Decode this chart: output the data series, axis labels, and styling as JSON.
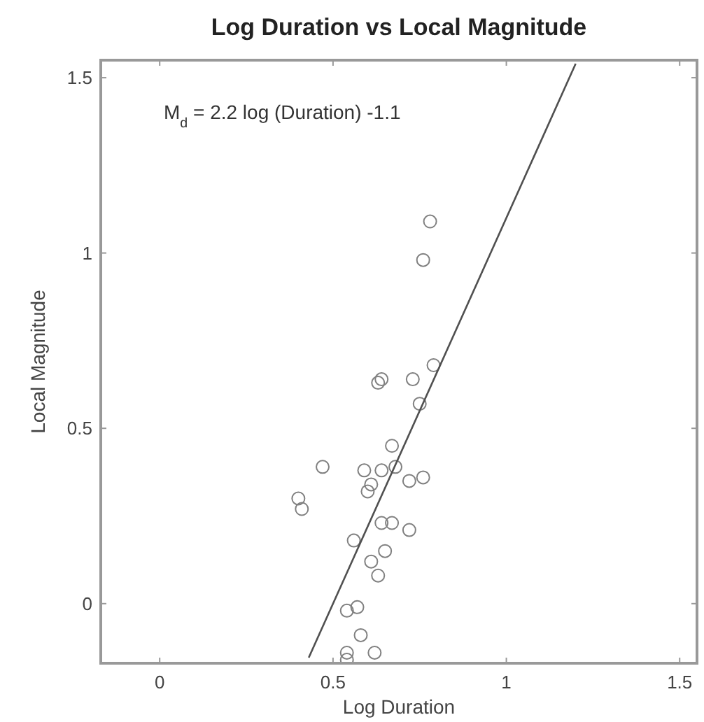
{
  "chart_data": {
    "type": "scatter",
    "title": "Log Duration vs Local Magnitude",
    "xlabel": "Log Duration",
    "ylabel": "Local Magnitude",
    "annotations": [
      "M$_{d}$ = 2.2 log (Duration) -1.1"
    ],
    "xlim": [
      -0.17,
      1.55
    ],
    "ylim": [
      -0.17,
      1.55
    ],
    "xticks": [
      0,
      0.5,
      1,
      1.5
    ],
    "yticks": [
      0,
      0.5,
      1,
      1.5
    ],
    "grid": false,
    "marker": "circle",
    "series": [
      {
        "color": "#808080",
        "x": [
          0.78,
          0.76,
          0.79,
          0.63,
          0.64,
          0.73,
          0.75,
          0.67,
          0.47,
          0.59,
          0.64,
          0.68,
          0.72,
          0.76,
          0.61,
          0.6,
          0.4,
          0.41,
          0.56,
          0.64,
          0.67,
          0.72,
          0.65,
          0.61,
          0.63,
          0.54,
          0.57,
          0.58,
          0.54,
          0.62,
          0.54
        ],
        "values": [
          1.09,
          0.98,
          0.68,
          0.63,
          0.64,
          0.64,
          0.57,
          0.45,
          0.39,
          0.38,
          0.38,
          0.39,
          0.35,
          0.36,
          0.34,
          0.32,
          0.3,
          0.27,
          0.18,
          0.23,
          0.23,
          0.21,
          0.15,
          0.12,
          0.08,
          -0.02,
          -0.01,
          -0.09,
          -0.14,
          -0.14,
          -0.16
        ]
      },
      {
        "type": "line",
        "color": "#505050",
        "line_style": "solid",
        "marker": "none",
        "x": [
          0.43,
          1.2
        ],
        "values": [
          -0.154,
          1.54
        ]
      }
    ]
  }
}
